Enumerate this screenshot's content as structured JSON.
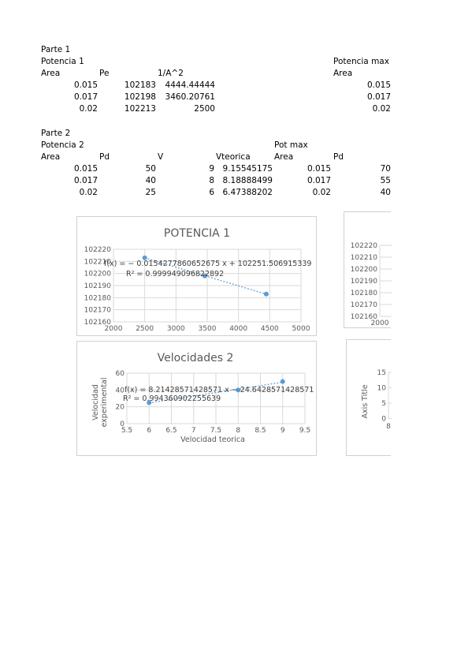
{
  "sheet": {
    "part1": {
      "title": "Parte 1",
      "subtitle": "Potencia 1",
      "headers": [
        "Area",
        "Pe",
        "1/A^2"
      ],
      "rows": [
        [
          "0.015",
          "102183",
          "4444.44444"
        ],
        [
          "0.017",
          "102198",
          "3460.20761"
        ],
        [
          "0.02",
          "102213",
          "2500"
        ]
      ],
      "max_title": "Potencia max",
      "max_header": "Area",
      "max_values": [
        "0.015",
        "0.017",
        "0.02"
      ]
    },
    "part2": {
      "title": "Parte 2",
      "subtitle": "Potencia 2",
      "pot_max_title": "Pot max",
      "headers": [
        "Area",
        "Pd",
        "V",
        "Vteorica",
        "Area",
        "Pd"
      ],
      "rows": [
        [
          "0.015",
          "50",
          "9",
          "9.15545175",
          "0.015",
          "70"
        ],
        [
          "0.017",
          "40",
          "8",
          "8.18888499",
          "0.017",
          "55"
        ],
        [
          "0.02",
          "25",
          "6",
          "6.47388202",
          "0.02",
          "40"
        ]
      ]
    }
  },
  "charts": {
    "potencia1": {
      "title": "POTENCIA  1",
      "equation": "f(x) = − 0.0154277860652675 x + 102251.506915339",
      "r2": "R² = 0.999949096822892"
    },
    "velocidades2": {
      "title": "Velocidades 2",
      "ylabel_line1": "Velocidad",
      "ylabel_line2": "experimental",
      "xlabel": "Velocidad teorica",
      "equation": "f(x) = 8.21428571428571 x − 24.6428571428571",
      "r2": "R² = 0.994360902255639"
    },
    "partial_right_top": {
      "yticks": [
        "102220",
        "102210",
        "102200",
        "102190",
        "102180",
        "102170",
        "102160"
      ],
      "xtick": "2000"
    },
    "partial_right_bottom": {
      "ylabel": "Axis Title",
      "yticks": [
        "15",
        "10",
        "5",
        "0"
      ],
      "xtick": "8"
    }
  },
  "chart_data": [
    {
      "type": "scatter",
      "title": "POTENCIA  1",
      "xlabel": "",
      "ylabel": "",
      "x": [
        2500,
        3460.20761,
        4444.44444
      ],
      "y": [
        102213,
        102198,
        102183
      ],
      "xlim": [
        2000,
        5000
      ],
      "ylim": [
        102160,
        102220
      ],
      "xticks": [
        2000,
        2500,
        3000,
        3500,
        4000,
        4500,
        5000
      ],
      "yticks": [
        102160,
        102170,
        102180,
        102190,
        102200,
        102210,
        102220
      ],
      "trendline": {
        "slope": -0.0154277860652675,
        "intercept": 102251.506915339
      },
      "grid": true,
      "color": "#5b9bd5"
    },
    {
      "type": "scatter",
      "title": "Velocidades 2",
      "xlabel": "Velocidad teorica",
      "ylabel": "Velocidad experimental",
      "x": [
        6,
        8,
        9
      ],
      "y": [
        25,
        40,
        50
      ],
      "xlim": [
        5.5,
        9.5
      ],
      "ylim": [
        0,
        60
      ],
      "xticks": [
        5.5,
        6,
        6.5,
        7,
        7.5,
        8,
        8.5,
        9,
        9.5
      ],
      "yticks": [
        0,
        20,
        40,
        60
      ],
      "trendline": {
        "slope": 8.21428571428571,
        "intercept": -24.6428571428571
      },
      "grid": true,
      "color": "#5b9bd5"
    }
  ]
}
